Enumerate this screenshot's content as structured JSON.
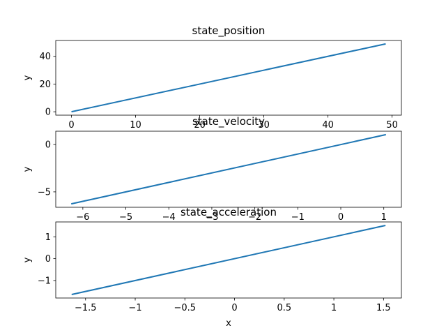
{
  "chart_data": [
    {
      "type": "line",
      "title": "state_position",
      "xlabel": "",
      "ylabel": "y",
      "xlim": [
        -2.45,
        51.45
      ],
      "ylim": [
        -2.45,
        51.45
      ],
      "xticks": [
        0,
        10,
        20,
        30,
        40,
        50
      ],
      "yticks": [
        0,
        20,
        40
      ],
      "series": [
        {
          "x": [
            0,
            49
          ],
          "y": [
            0,
            49
          ],
          "color": "#1f77b4"
        }
      ],
      "grid": false
    },
    {
      "type": "line",
      "title": "state_velocity",
      "xlabel": "",
      "ylabel": "y",
      "xlim": [
        -6.63,
        1.41
      ],
      "ylim": [
        -6.63,
        1.41
      ],
      "xticks": [
        -6,
        -5,
        -4,
        -3,
        -2,
        -1,
        0,
        1
      ],
      "yticks": [
        -5,
        0
      ],
      "series": [
        {
          "x": [
            -6.27,
            1.05
          ],
          "y": [
            -6.27,
            1.05
          ],
          "color": "#1f77b4"
        }
      ],
      "grid": false
    },
    {
      "type": "line",
      "title": "state_acceleration",
      "xlabel": "x",
      "ylabel": "y",
      "xlim": [
        -1.8,
        1.68
      ],
      "ylim": [
        -1.8,
        1.68
      ],
      "xticks": [
        -1.5,
        -1.0,
        -0.5,
        0.0,
        0.5,
        1.0,
        1.5
      ],
      "yticks": [
        -1,
        0,
        1
      ],
      "series": [
        {
          "x": [
            -1.64,
            1.52
          ],
          "y": [
            -1.64,
            1.52
          ],
          "color": "#1f77b4"
        }
      ],
      "grid": false
    }
  ]
}
